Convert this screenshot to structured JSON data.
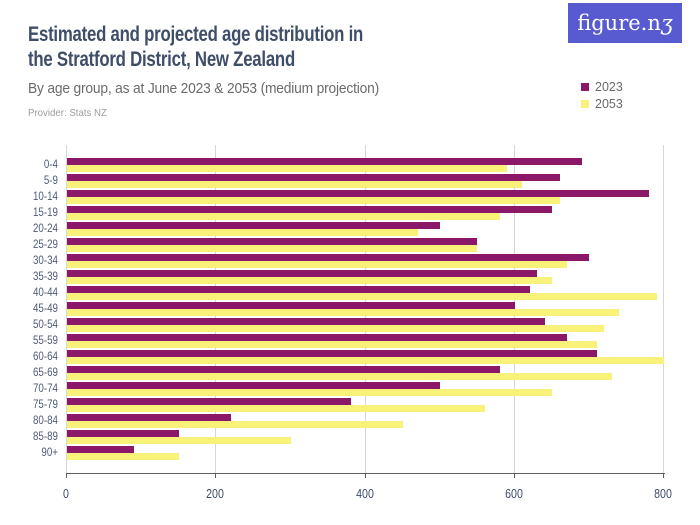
{
  "header": {
    "title": "Estimated and projected age distribution in the Stratford District, New Zealand",
    "subtitle": "By age group, as at June 2023 & 2053 (medium projection)",
    "provider": "Provider: Stats NZ"
  },
  "logo": {
    "text": "figure.nz",
    "background_color": "#585AD0"
  },
  "legend": [
    {
      "label": "2023",
      "color": "#8B1769"
    },
    {
      "label": "2053",
      "color": "#F8F17A"
    }
  ],
  "chart_data": {
    "type": "bar",
    "orientation": "horizontal",
    "title": "Estimated and projected age distribution in the Stratford District, New Zealand",
    "subtitle": "By age group, as at June 2023 & 2053 (medium projection)",
    "xlabel": "",
    "ylabel": "",
    "xlim": [
      0,
      800
    ],
    "xticks": [
      0,
      200,
      400,
      600,
      800
    ],
    "grid": true,
    "legend_position": "top-right",
    "categories": [
      "0-4",
      "5-9",
      "10-14",
      "15-19",
      "20-24",
      "25-29",
      "30-34",
      "35-39",
      "40-44",
      "45-49",
      "50-54",
      "55-59",
      "60-64",
      "65-69",
      "70-74",
      "75-79",
      "80-84",
      "85-89",
      "90+"
    ],
    "series": [
      {
        "name": "2023",
        "color": "#8B1769",
        "values": [
          690,
          660,
          780,
          650,
          500,
          550,
          700,
          630,
          620,
          600,
          640,
          670,
          710,
          580,
          500,
          380,
          220,
          150,
          90
        ]
      },
      {
        "name": "2053",
        "color": "#F8F17A",
        "values": [
          590,
          610,
          660,
          580,
          470,
          550,
          670,
          650,
          790,
          740,
          720,
          710,
          800,
          730,
          650,
          560,
          450,
          300,
          150
        ]
      }
    ]
  }
}
